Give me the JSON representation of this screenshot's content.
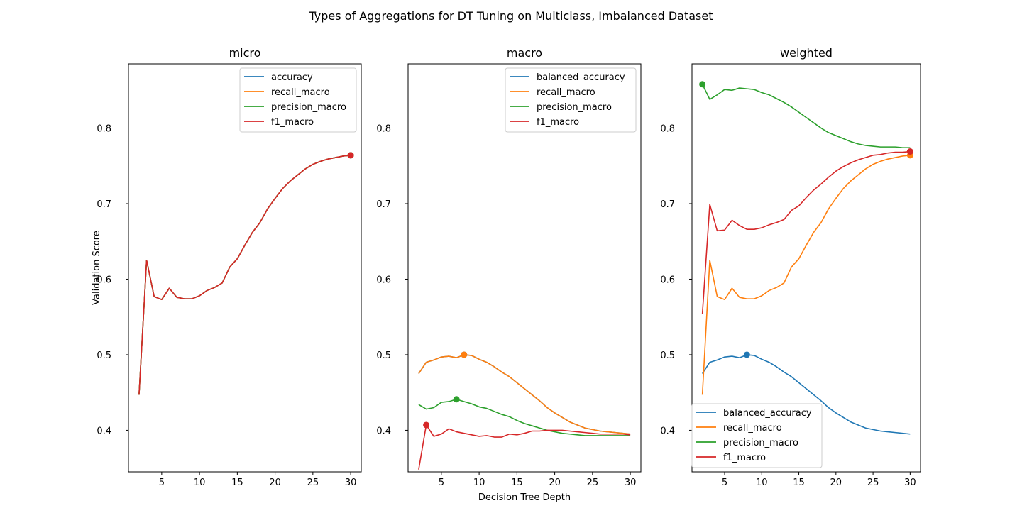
{
  "figure": {
    "title": "Types of Aggregations for DT Tuning on Multiclass, Imbalanced Dataset",
    "colors": {
      "blue": "#1f77b4",
      "orange": "#ff7f0e",
      "green": "#2ca02c",
      "red": "#d62728"
    }
  },
  "chart_data": [
    {
      "type": "line",
      "title": "micro",
      "xlabel": "",
      "ylabel": "Validation Score",
      "xlim": [
        0.6,
        31.4
      ],
      "ylim": [
        0.345,
        0.885
      ],
      "xticks": [
        5,
        10,
        15,
        20,
        25,
        30
      ],
      "yticks": [
        0.4,
        0.5,
        0.6,
        0.7,
        0.8
      ],
      "legend": "upper-right",
      "grid": false,
      "x": [
        2,
        3,
        4,
        5,
        6,
        7,
        8,
        9,
        10,
        11,
        12,
        13,
        14,
        15,
        16,
        17,
        18,
        19,
        20,
        21,
        22,
        23,
        24,
        25,
        26,
        27,
        28,
        29,
        30
      ],
      "series": [
        {
          "name": "accuracy",
          "color": "#1f77b4",
          "marker_index": 28,
          "values": [
            0.447,
            0.625,
            0.577,
            0.573,
            0.588,
            0.576,
            0.574,
            0.574,
            0.578,
            0.585,
            0.589,
            0.595,
            0.616,
            0.627,
            0.645,
            0.662,
            0.675,
            0.693,
            0.707,
            0.72,
            0.73,
            0.738,
            0.746,
            0.752,
            0.756,
            0.759,
            0.761,
            0.763,
            0.764
          ]
        },
        {
          "name": "recall_macro",
          "color": "#ff7f0e",
          "marker_index": 28,
          "values": [
            0.447,
            0.625,
            0.577,
            0.573,
            0.588,
            0.576,
            0.574,
            0.574,
            0.578,
            0.585,
            0.589,
            0.595,
            0.616,
            0.627,
            0.645,
            0.662,
            0.675,
            0.693,
            0.707,
            0.72,
            0.73,
            0.738,
            0.746,
            0.752,
            0.756,
            0.759,
            0.761,
            0.763,
            0.764
          ]
        },
        {
          "name": "precision_macro",
          "color": "#2ca02c",
          "marker_index": 28,
          "values": [
            0.447,
            0.625,
            0.577,
            0.573,
            0.588,
            0.576,
            0.574,
            0.574,
            0.578,
            0.585,
            0.589,
            0.595,
            0.616,
            0.627,
            0.645,
            0.662,
            0.675,
            0.693,
            0.707,
            0.72,
            0.73,
            0.738,
            0.746,
            0.752,
            0.756,
            0.759,
            0.761,
            0.763,
            0.764
          ]
        },
        {
          "name": "f1_macro",
          "color": "#d62728",
          "marker_index": 28,
          "values": [
            0.447,
            0.625,
            0.577,
            0.573,
            0.588,
            0.576,
            0.574,
            0.574,
            0.578,
            0.585,
            0.589,
            0.595,
            0.616,
            0.627,
            0.645,
            0.662,
            0.675,
            0.693,
            0.707,
            0.72,
            0.73,
            0.738,
            0.746,
            0.752,
            0.756,
            0.759,
            0.761,
            0.763,
            0.764
          ]
        }
      ]
    },
    {
      "type": "line",
      "title": "macro",
      "xlabel": "Decision Tree Depth",
      "ylabel": "",
      "xlim": [
        0.6,
        31.4
      ],
      "ylim": [
        0.345,
        0.885
      ],
      "xticks": [
        5,
        10,
        15,
        20,
        25,
        30
      ],
      "yticks": [
        0.4,
        0.5,
        0.6,
        0.7,
        0.8
      ],
      "legend": "upper-right",
      "grid": false,
      "x": [
        2,
        3,
        4,
        5,
        6,
        7,
        8,
        9,
        10,
        11,
        12,
        13,
        14,
        15,
        16,
        17,
        18,
        19,
        20,
        21,
        22,
        23,
        24,
        25,
        26,
        27,
        28,
        29,
        30
      ],
      "series": [
        {
          "name": "balanced_accuracy",
          "color": "#1f77b4",
          "marker_index": 6,
          "values": [
            0.475,
            0.49,
            0.493,
            0.497,
            0.498,
            0.496,
            0.5,
            0.499,
            0.494,
            0.49,
            0.484,
            0.477,
            0.471,
            0.463,
            0.455,
            0.447,
            0.439,
            0.43,
            0.423,
            0.417,
            0.411,
            0.407,
            0.403,
            0.401,
            0.399,
            0.398,
            0.397,
            0.396,
            0.395
          ]
        },
        {
          "name": "recall_macro",
          "color": "#ff7f0e",
          "marker_index": 6,
          "values": [
            0.475,
            0.49,
            0.493,
            0.497,
            0.498,
            0.496,
            0.5,
            0.499,
            0.494,
            0.49,
            0.484,
            0.477,
            0.471,
            0.463,
            0.455,
            0.447,
            0.439,
            0.43,
            0.423,
            0.417,
            0.411,
            0.407,
            0.403,
            0.401,
            0.399,
            0.398,
            0.397,
            0.396,
            0.395
          ]
        },
        {
          "name": "precision_macro",
          "color": "#2ca02c",
          "marker_index": 5,
          "values": [
            0.434,
            0.428,
            0.43,
            0.437,
            0.438,
            0.441,
            0.438,
            0.435,
            0.431,
            0.429,
            0.425,
            0.421,
            0.418,
            0.413,
            0.409,
            0.406,
            0.403,
            0.4,
            0.398,
            0.396,
            0.395,
            0.394,
            0.393,
            0.393,
            0.393,
            0.393,
            0.393,
            0.393,
            0.393
          ]
        },
        {
          "name": "f1_macro",
          "color": "#d62728",
          "marker_index": 1,
          "values": [
            0.348,
            0.407,
            0.392,
            0.395,
            0.402,
            0.398,
            0.396,
            0.394,
            0.392,
            0.393,
            0.391,
            0.391,
            0.395,
            0.394,
            0.396,
            0.399,
            0.399,
            0.4,
            0.4,
            0.4,
            0.399,
            0.398,
            0.397,
            0.396,
            0.395,
            0.395,
            0.395,
            0.395,
            0.394
          ]
        }
      ]
    },
    {
      "type": "line",
      "title": "weighted",
      "xlabel": "",
      "ylabel": "",
      "xlim": [
        0.6,
        31.4
      ],
      "ylim": [
        0.345,
        0.885
      ],
      "xticks": [
        5,
        10,
        15,
        20,
        25,
        30
      ],
      "yticks": [
        0.4,
        0.5,
        0.6,
        0.7,
        0.8
      ],
      "legend": "lower-left",
      "grid": false,
      "x": [
        2,
        3,
        4,
        5,
        6,
        7,
        8,
        9,
        10,
        11,
        12,
        13,
        14,
        15,
        16,
        17,
        18,
        19,
        20,
        21,
        22,
        23,
        24,
        25,
        26,
        27,
        28,
        29,
        30
      ],
      "series": [
        {
          "name": "balanced_accuracy",
          "color": "#1f77b4",
          "marker_index": 6,
          "values": [
            0.475,
            0.49,
            0.493,
            0.497,
            0.498,
            0.496,
            0.5,
            0.499,
            0.494,
            0.49,
            0.484,
            0.477,
            0.471,
            0.463,
            0.455,
            0.447,
            0.439,
            0.43,
            0.423,
            0.417,
            0.411,
            0.407,
            0.403,
            0.401,
            0.399,
            0.398,
            0.397,
            0.396,
            0.395
          ]
        },
        {
          "name": "recall_macro",
          "color": "#ff7f0e",
          "marker_index": 28,
          "values": [
            0.447,
            0.625,
            0.577,
            0.573,
            0.588,
            0.576,
            0.574,
            0.574,
            0.578,
            0.585,
            0.589,
            0.595,
            0.616,
            0.627,
            0.645,
            0.662,
            0.675,
            0.693,
            0.707,
            0.72,
            0.73,
            0.738,
            0.746,
            0.752,
            0.756,
            0.759,
            0.761,
            0.763,
            0.764
          ]
        },
        {
          "name": "precision_macro",
          "color": "#2ca02c",
          "marker_index": 0,
          "values": [
            0.858,
            0.838,
            0.844,
            0.851,
            0.85,
            0.853,
            0.852,
            0.851,
            0.847,
            0.844,
            0.839,
            0.834,
            0.828,
            0.821,
            0.814,
            0.807,
            0.8,
            0.794,
            0.79,
            0.786,
            0.782,
            0.779,
            0.777,
            0.776,
            0.775,
            0.775,
            0.775,
            0.774,
            0.774
          ]
        },
        {
          "name": "f1_macro",
          "color": "#d62728",
          "marker_index": 28,
          "values": [
            0.554,
            0.699,
            0.664,
            0.665,
            0.678,
            0.671,
            0.666,
            0.666,
            0.668,
            0.672,
            0.675,
            0.679,
            0.691,
            0.697,
            0.708,
            0.718,
            0.726,
            0.735,
            0.743,
            0.749,
            0.754,
            0.758,
            0.761,
            0.764,
            0.765,
            0.767,
            0.768,
            0.768,
            0.769
          ]
        }
      ]
    }
  ]
}
